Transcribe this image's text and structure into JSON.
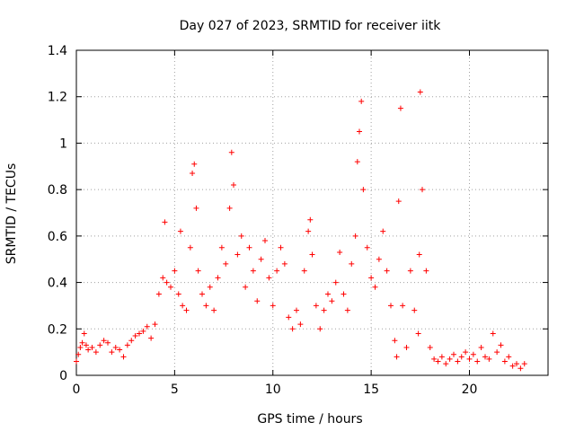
{
  "chart_data": {
    "type": "scatter",
    "title": "Day 027 of 2023, SRMTID for receiver iitk",
    "xlabel": "GPS time / hours",
    "ylabel": "SRMTID / TECUs",
    "xlim": [
      0,
      24
    ],
    "ylim": [
      0,
      1.4
    ],
    "xticks": [
      0,
      5,
      10,
      15,
      20
    ],
    "xtick_labels": [
      "0",
      "5",
      "10",
      "15",
      "20"
    ],
    "yticks": [
      0,
      0.2,
      0.4,
      0.6,
      0.8,
      1.0,
      1.2,
      1.4
    ],
    "ytick_labels": [
      "0",
      "0.2",
      "0.4",
      "0.6",
      "0.8",
      "1",
      "1.2",
      "1.4"
    ],
    "grid": true,
    "marker": "+",
    "marker_color": "#ff0000",
    "series": [
      {
        "name": "SRMTID",
        "x": [
          0.0,
          0.1,
          0.2,
          0.3,
          0.4,
          0.5,
          0.6,
          0.8,
          1.0,
          1.2,
          1.4,
          1.6,
          1.8,
          2.0,
          2.2,
          2.4,
          2.6,
          2.8,
          3.0,
          3.2,
          3.4,
          3.6,
          3.8,
          4.0,
          4.2,
          4.4,
          4.5,
          4.6,
          4.8,
          5.0,
          5.2,
          5.3,
          5.4,
          5.6,
          5.8,
          5.9,
          6.0,
          6.1,
          6.2,
          6.4,
          6.6,
          6.8,
          7.0,
          7.2,
          7.4,
          7.6,
          7.8,
          7.9,
          8.0,
          8.2,
          8.4,
          8.6,
          8.8,
          9.0,
          9.2,
          9.4,
          9.6,
          9.8,
          10.0,
          10.2,
          10.4,
          10.6,
          10.8,
          11.0,
          11.2,
          11.4,
          11.6,
          11.8,
          11.9,
          12.0,
          12.2,
          12.4,
          12.6,
          12.8,
          13.0,
          13.2,
          13.4,
          13.6,
          13.8,
          14.0,
          14.2,
          14.3,
          14.4,
          14.5,
          14.6,
          14.8,
          15.0,
          15.2,
          15.4,
          15.6,
          15.8,
          16.0,
          16.2,
          16.3,
          16.4,
          16.5,
          16.6,
          16.8,
          17.0,
          17.2,
          17.4,
          17.45,
          17.5,
          17.6,
          17.8,
          18.0,
          18.2,
          18.4,
          18.6,
          18.8,
          19.0,
          19.2,
          19.4,
          19.6,
          19.8,
          20.0,
          20.2,
          20.4,
          20.6,
          20.8,
          21.0,
          21.2,
          21.4,
          21.6,
          21.8,
          22.0,
          22.2,
          22.4,
          22.6,
          22.8
        ],
        "y": [
          0.06,
          0.09,
          0.12,
          0.14,
          0.18,
          0.13,
          0.11,
          0.12,
          0.1,
          0.13,
          0.15,
          0.14,
          0.1,
          0.12,
          0.11,
          0.08,
          0.13,
          0.15,
          0.17,
          0.18,
          0.19,
          0.21,
          0.16,
          0.22,
          0.35,
          0.42,
          0.66,
          0.4,
          0.38,
          0.45,
          0.35,
          0.62,
          0.3,
          0.28,
          0.55,
          0.87,
          0.91,
          0.72,
          0.45,
          0.35,
          0.3,
          0.38,
          0.28,
          0.42,
          0.55,
          0.48,
          0.72,
          0.96,
          0.82,
          0.52,
          0.6,
          0.38,
          0.55,
          0.45,
          0.32,
          0.5,
          0.58,
          0.42,
          0.3,
          0.45,
          0.55,
          0.48,
          0.25,
          0.2,
          0.28,
          0.22,
          0.45,
          0.62,
          0.67,
          0.52,
          0.3,
          0.2,
          0.28,
          0.35,
          0.32,
          0.4,
          0.53,
          0.35,
          0.28,
          0.48,
          0.6,
          0.92,
          1.05,
          1.18,
          0.8,
          0.55,
          0.42,
          0.38,
          0.5,
          0.62,
          0.45,
          0.3,
          0.15,
          0.08,
          0.75,
          1.15,
          0.3,
          0.12,
          0.45,
          0.28,
          0.18,
          0.52,
          1.22,
          0.8,
          0.45,
          0.12,
          0.07,
          0.06,
          0.08,
          0.05,
          0.07,
          0.09,
          0.06,
          0.08,
          0.1,
          0.07,
          0.09,
          0.06,
          0.12,
          0.08,
          0.07,
          0.18,
          0.1,
          0.13,
          0.06,
          0.08,
          0.04,
          0.05,
          0.03,
          0.05
        ]
      }
    ]
  }
}
